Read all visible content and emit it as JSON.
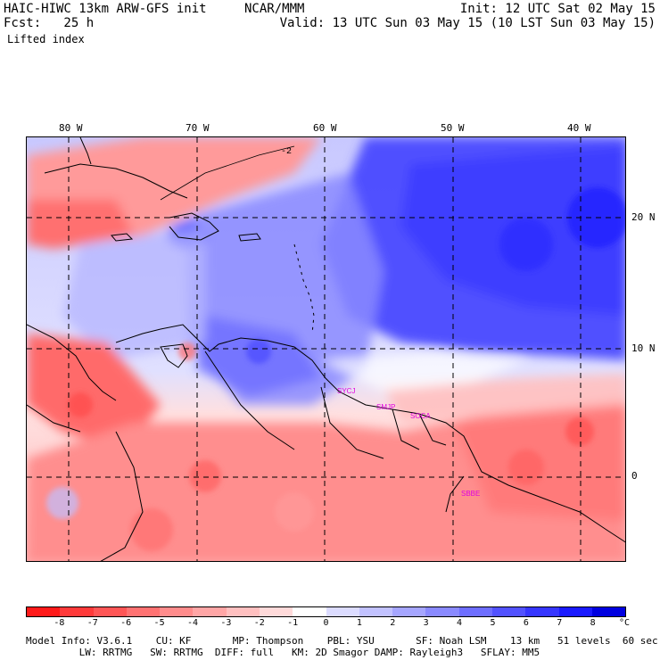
{
  "header": {
    "model": "HAIC-HIWC 13km ARW-GFS init",
    "org": "NCAR/MMM",
    "fcst": "Fcst:   25 h",
    "field": "Lifted index",
    "init": "Init: 12 UTC Sat 02 May 15",
    "valid": "Valid: 13 UTC Sun 03 May 15 (10 LST Sun 03 May 15)"
  },
  "map": {
    "longitude_labels": [
      "80 W",
      "70 W",
      "60 W",
      "50 W",
      "40 W"
    ],
    "latitude_labels": [
      "20 N",
      "10 N",
      "0"
    ],
    "station_labels": [
      "SMJP",
      "SOCA",
      "SYCJ",
      "SBBE"
    ],
    "contour_label": "-2"
  },
  "colorbar": {
    "labels": [
      "-8",
      "-7",
      "-6",
      "-5",
      "-4",
      "-3",
      "-2",
      "-1",
      "0",
      "1",
      "2",
      "3",
      "4",
      "5",
      "6",
      "7",
      "8"
    ],
    "unit": "°C",
    "colors": [
      "#ff1a1a",
      "#ff3a3a",
      "#ff5656",
      "#ff7272",
      "#ff8c8c",
      "#ffa6a6",
      "#ffc0c0",
      "#ffdada",
      "#ffffff",
      "#dcdcff",
      "#c2c2ff",
      "#a6a6ff",
      "#8a8aff",
      "#6e6eff",
      "#5252ff",
      "#3636ff",
      "#1a1aff",
      "#0000e0"
    ]
  },
  "footer": {
    "line1": "Model Info: V3.6.1    CU: KF       MP: Thompson    PBL: YSU       SF: Noah LSM    13 km   51 levels  60 sec",
    "line2": "         LW: RRTMG   SW: RRTMG  DIFF: full   KM: 2D Smagor DAMP: Rayleigh3   SFLAY: MM5"
  }
}
